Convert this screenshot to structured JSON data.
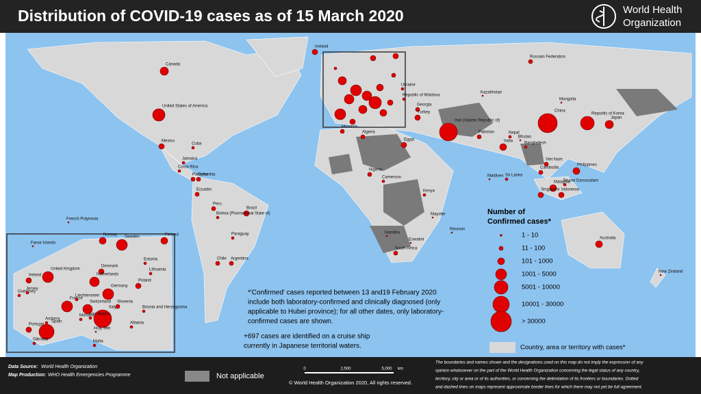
{
  "header": {
    "title": "Distribution of COVID-19  cases as of 15 March 2020",
    "logo": [
      "World Health",
      "Organization"
    ]
  },
  "legend": {
    "title": [
      "Number of",
      "Confirmed cases*"
    ],
    "items": [
      "1 - 10",
      "11 - 100",
      "101 - 1000",
      "1001 - 5000",
      "5001 - 10000",
      "10001 - 30000",
      "> 30000"
    ],
    "cases_area": "Country, area or territory with cases*"
  },
  "notes": {
    "confirmed": [
      "*'Confirmed' cases reported between 13 and19 February 2020",
      "include both laboratory-confirmed and clinically diagnosed (only",
      "applicable to Hubei province); for all other dates, only laboratory-",
      "confirmed cases are shown."
    ],
    "cruise": [
      "+697 cases are identified on a cruise ship",
      "currently in Japanese territorial waters."
    ]
  },
  "footer": {
    "data_source_label": "Data Source:",
    "data_source": "World Health Organization",
    "production_label": "Map Production:",
    "production": "WHO Health Emergencies Programme",
    "not_applicable": "Not applicable",
    "scale": [
      "0",
      "2,500",
      "5,000",
      "km"
    ],
    "copyright": "© World Health Organization 2020, All rights reserved.",
    "disclaimer": [
      "The boundaries and names shown and the designations used on this map do not imply the expression of any",
      "opinion whatsoever on the part of the World Health Organization concerning the legal status of any country,",
      "territory, city or area or of its authorities, or concerning the delimitation of its frontiers or boundaries. Dotted",
      "and dashed lines on maps represent approximate border lines for which there may not yet be full agreement."
    ]
  },
  "labels": [
    "Canada",
    "United States of America",
    "Mexico",
    "Cuba",
    "Jamaica",
    "Costa Rica",
    "Panama",
    "Colombia",
    "Ecuador",
    "Peru",
    "Brazil",
    "Bolivia (Plurinational State of)",
    "Paraguay",
    "Chile",
    "Argentina",
    "French Polynesia",
    "Iceland",
    "Ukraine",
    "Republic of Moldova",
    "Georgia",
    "Turkey",
    "Algeria",
    "Morocco",
    "Egypt",
    "Nigeria",
    "Cameroon",
    "Kenya",
    "South Africa",
    "Namibia",
    "Eswatini",
    "Mayotte",
    "Réunion",
    "Iran (Islamic Republic of)",
    "Pakistan",
    "India",
    "Nepal",
    "Bhutan",
    "Bangladesh",
    "Sri Lanka",
    "Maldives",
    "Kazakhstan",
    "Russian Federation",
    "Mongolia",
    "China",
    "Republic of Korea",
    "Japan",
    "Viet Nam",
    "Cambodia",
    "Philippines",
    "Malaysia",
    "Singapore",
    "Brunei Darussalam",
    "Indonesia",
    "Australia",
    "New Zealand",
    "Faroe Islands",
    "Norway",
    "Sweden",
    "Finland",
    "Estonia",
    "Lithuania",
    "Denmark",
    "Netherlands",
    "United Kingdom",
    "Ireland",
    "Guernsey",
    "Jersey",
    "France",
    "Germany",
    "Poland",
    "Liechtenstein",
    "Switzerland",
    "Andorra",
    "Portugal",
    "Spain",
    "Italy",
    "Holy See",
    "San Marino",
    "Monaco",
    "Gibraltar",
    "Malta",
    "Albania",
    "Bosnia and Herzegovina",
    "Slovenia"
  ]
}
